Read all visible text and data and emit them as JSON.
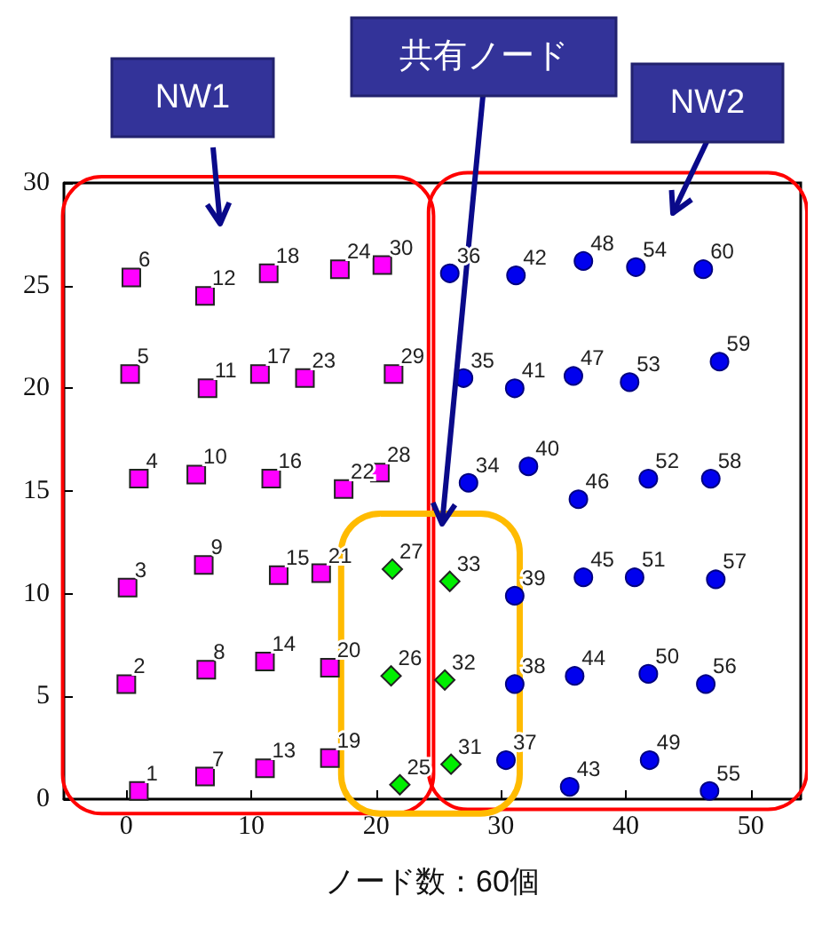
{
  "chart_data": {
    "type": "scatter",
    "xlabel": "ノード数：60個",
    "xlim": [
      -5,
      54
    ],
    "ylim": [
      0,
      30
    ],
    "xticks": [
      0,
      10,
      20,
      30,
      40,
      50
    ],
    "yticks": [
      0,
      5,
      10,
      15,
      20,
      25,
      30
    ],
    "grid": false,
    "annotations": [
      "NW1",
      "共有ノード",
      "NW2",
      {
        "text": "1",
        "x": 1.0,
        "y": 0.4
      },
      {
        "text": "2",
        "x": 0,
        "y": 5.6
      },
      {
        "text": "3",
        "x": 0.1,
        "y": 10.3
      },
      {
        "text": "4",
        "x": 1.0,
        "y": 15.6
      },
      {
        "text": "5",
        "x": 0.3,
        "y": 20.7
      },
      {
        "text": "6",
        "x": 0.4,
        "y": 25.4
      },
      {
        "text": "7",
        "x": 6.3,
        "y": 1.1
      },
      {
        "text": "8",
        "x": 6.4,
        "y": 6.3
      },
      {
        "text": "9",
        "x": 6.2,
        "y": 11.4
      },
      {
        "text": "10",
        "x": 5.6,
        "y": 15.8
      },
      {
        "text": "11",
        "x": 6.5,
        "y": 20.0
      },
      {
        "text": "12",
        "x": 6.3,
        "y": 24.5
      },
      {
        "text": "13",
        "x": 11.1,
        "y": 1.5
      },
      {
        "text": "14",
        "x": 11.1,
        "y": 6.7
      },
      {
        "text": "15",
        "x": 12.2,
        "y": 10.9
      },
      {
        "text": "16",
        "x": 11.6,
        "y": 15.6
      },
      {
        "text": "17",
        "x": 10.7,
        "y": 20.7
      },
      {
        "text": "18",
        "x": 11.4,
        "y": 25.6
      },
      {
        "text": "19",
        "x": 16.3,
        "y": 2.0
      },
      {
        "text": "20",
        "x": 16.3,
        "y": 6.4
      },
      {
        "text": "21",
        "x": 15.6,
        "y": 11.0
      },
      {
        "text": "22",
        "x": 17.4,
        "y": 15.1
      },
      {
        "text": "23",
        "x": 14.3,
        "y": 20.5
      },
      {
        "text": "24",
        "x": 17.1,
        "y": 25.8
      },
      {
        "text": "25",
        "x": 21.9,
        "y": 0.7
      },
      {
        "text": "26",
        "x": 21.2,
        "y": 6.0
      },
      {
        "text": "27",
        "x": 21.3,
        "y": 11.2
      },
      {
        "text": "28",
        "x": 20.3,
        "y": 15.9
      },
      {
        "text": "29",
        "x": 21.4,
        "y": 20.7
      },
      {
        "text": "30",
        "x": 20.5,
        "y": 26.0
      },
      {
        "text": "31",
        "x": 26.0,
        "y": 1.7
      },
      {
        "text": "32",
        "x": 25.5,
        "y": 5.8
      },
      {
        "text": "33",
        "x": 25.9,
        "y": 10.6
      },
      {
        "text": "34",
        "x": 27.4,
        "y": 15.4
      },
      {
        "text": "35",
        "x": 27.0,
        "y": 20.5
      },
      {
        "text": "36",
        "x": 25.9,
        "y": 25.6
      },
      {
        "text": "37",
        "x": 30.4,
        "y": 1.9
      },
      {
        "text": "38",
        "x": 31.1,
        "y": 5.6
      },
      {
        "text": "39",
        "x": 31.1,
        "y": 9.9
      },
      {
        "text": "40",
        "x": 32.2,
        "y": 16.2
      },
      {
        "text": "41",
        "x": 31.1,
        "y": 20.0
      },
      {
        "text": "42",
        "x": 31.2,
        "y": 25.5
      },
      {
        "text": "43",
        "x": 35.5,
        "y": 0.6
      },
      {
        "text": "44",
        "x": 35.9,
        "y": 6.0
      },
      {
        "text": "45",
        "x": 36.6,
        "y": 10.8
      },
      {
        "text": "46",
        "x": 36.2,
        "y": 14.6
      },
      {
        "text": "47",
        "x": 35.8,
        "y": 20.6
      },
      {
        "text": "48",
        "x": 36.6,
        "y": 26.2
      },
      {
        "text": "49",
        "x": 41.9,
        "y": 1.9
      },
      {
        "text": "50",
        "x": 41.8,
        "y": 6.1
      },
      {
        "text": "51",
        "x": 40.7,
        "y": 10.8
      },
      {
        "text": "52",
        "x": 41.8,
        "y": 15.6
      },
      {
        "text": "53",
        "x": 40.3,
        "y": 20.3
      },
      {
        "text": "54",
        "x": 40.8,
        "y": 25.9
      },
      {
        "text": "55",
        "x": 46.7,
        "y": 0.4
      },
      {
        "text": "56",
        "x": 46.4,
        "y": 5.6
      },
      {
        "text": "57",
        "x": 47.2,
        "y": 10.7
      },
      {
        "text": "58",
        "x": 46.8,
        "y": 15.6
      },
      {
        "text": "59",
        "x": 47.5,
        "y": 21.3
      },
      {
        "text": "60",
        "x": 46.2,
        "y": 25.8
      }
    ],
    "series": [
      {
        "color": "#ff00ff",
        "marker": "square",
        "x": [
          1.0,
          0,
          0.1,
          1.0,
          0.3,
          0.4,
          6.3,
          6.4,
          6.2,
          5.6,
          6.5,
          6.3,
          11.1,
          11.1,
          12.2,
          11.6,
          10.7,
          11.4,
          16.3,
          16.3,
          15.6,
          17.4,
          14.3,
          17.1,
          20.3,
          21.4,
          20.5
        ],
        "values": [
          0.4,
          5.6,
          10.3,
          15.6,
          20.7,
          25.4,
          1.1,
          6.3,
          11.4,
          15.8,
          20.0,
          24.5,
          1.5,
          6.7,
          10.9,
          15.6,
          20.7,
          25.6,
          2.0,
          6.4,
          11.0,
          15.1,
          20.5,
          25.8,
          15.9,
          20.7,
          26.0
        ]
      },
      {
        "color": "#00ee00",
        "marker": "diamond",
        "x": [
          21.9,
          21.2,
          21.3,
          26.0,
          25.5,
          25.9
        ],
        "values": [
          0.7,
          6.0,
          11.2,
          1.7,
          5.8,
          10.6
        ]
      },
      {
        "color": "#0000ee",
        "marker": "circle",
        "x": [
          27.4,
          27.0,
          25.9,
          30.4,
          31.1,
          31.1,
          32.2,
          31.1,
          31.2,
          35.5,
          35.9,
          36.6,
          36.2,
          35.8,
          36.6,
          41.9,
          41.8,
          40.7,
          41.8,
          40.3,
          40.8,
          46.7,
          46.4,
          47.2,
          46.8,
          47.5,
          46.2
        ],
        "values": [
          15.4,
          20.5,
          25.6,
          1.9,
          5.6,
          9.9,
          16.2,
          20.0,
          25.5,
          0.6,
          6.0,
          10.8,
          14.6,
          20.6,
          26.2,
          1.9,
          6.1,
          10.8,
          15.6,
          20.3,
          25.9,
          0.4,
          5.6,
          10.7,
          15.6,
          21.3,
          25.8
        ]
      }
    ]
  }
}
